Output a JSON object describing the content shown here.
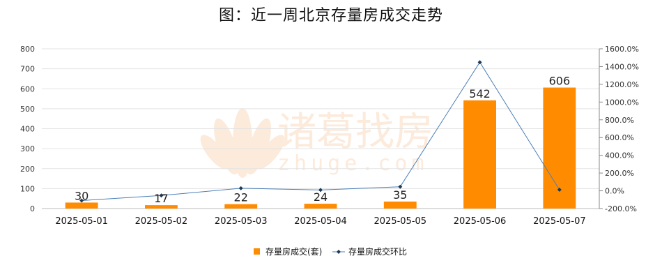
{
  "chart_data": {
    "type": "bar",
    "title": "图：近一周北京存量房成交走势",
    "watermark": {
      "brand": "诸葛找房",
      "url": "zhuge.com"
    },
    "categories": [
      "2025-05-01",
      "2025-05-02",
      "2025-05-03",
      "2025-05-04",
      "2025-05-05",
      "2025-05-06",
      "2025-05-07"
    ],
    "series": [
      {
        "name": "存量房成交(套)",
        "type": "bar",
        "axis": "left",
        "color": "#FF8C00",
        "values": [
          30,
          17,
          22,
          24,
          35,
          542,
          606
        ],
        "labels": [
          "30",
          "17",
          "22",
          "24",
          "35",
          "542",
          "606"
        ]
      },
      {
        "name": "存量房成交环比",
        "type": "line",
        "axis": "right",
        "color": "#4A7FB8",
        "values": [
          -110,
          -53,
          29,
          9,
          46,
          1449,
          12
        ]
      }
    ],
    "yleft": {
      "min": 0,
      "max": 800,
      "step": 100,
      "ticks": [
        "0",
        "100",
        "200",
        "300",
        "400",
        "500",
        "600",
        "700",
        "800"
      ]
    },
    "yright": {
      "min": -200,
      "max": 1600,
      "step": 200,
      "ticks": [
        "-200.0%",
        "0.0%",
        "200.0%",
        "400.0%",
        "600.0%",
        "800.0%",
        "1000.0%",
        "1200.0%",
        "1400.0%",
        "1600.0%"
      ]
    },
    "grid": true,
    "legend_position": "bottom"
  }
}
